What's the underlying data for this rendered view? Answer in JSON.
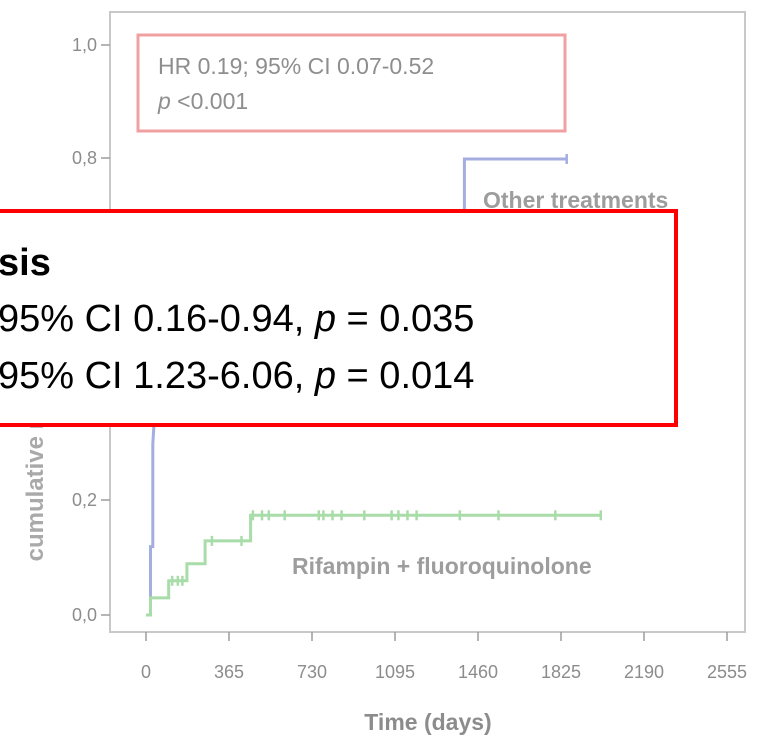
{
  "chart_data": {
    "type": "line",
    "step": true,
    "xlabel": "Time (days)",
    "ylabel": "cumulative risk of failure",
    "xlim": [
      0,
      2555
    ],
    "ylim": [
      0,
      1.0
    ],
    "xticks": [
      "0",
      "365",
      "730",
      "1095",
      "1460",
      "1825",
      "2190",
      "2555"
    ],
    "yticks": [
      "0,0",
      "0,2",
      "0,8",
      "1,0"
    ],
    "grid": false,
    "colors": {
      "other": "#a4aee0",
      "rifampin": "#a8dca8",
      "hr_box": "#f0a0a0",
      "overlay_border": "#ff0000"
    },
    "series": [
      {
        "name": "Other treatments",
        "points": [
          [
            0,
            0
          ],
          [
            20,
            0
          ],
          [
            20,
            0.12
          ],
          [
            30,
            0.12
          ],
          [
            30,
            0.3
          ],
          [
            45,
            0.4
          ],
          [
            1400,
            0.4
          ],
          [
            1400,
            0.8
          ],
          [
            1850,
            0.8
          ]
        ],
        "censored": [
          [
            1850,
            0.8
          ]
        ]
      },
      {
        "name": "Rifampin + fluoroquinolone",
        "points": [
          [
            0,
            0
          ],
          [
            20,
            0
          ],
          [
            20,
            0.03
          ],
          [
            100,
            0.03
          ],
          [
            100,
            0.06
          ],
          [
            180,
            0.06
          ],
          [
            180,
            0.09
          ],
          [
            260,
            0.09
          ],
          [
            260,
            0.13
          ],
          [
            460,
            0.13
          ],
          [
            460,
            0.175
          ],
          [
            2000,
            0.175
          ]
        ],
        "censored": [
          [
            115,
            0.06
          ],
          [
            140,
            0.06
          ],
          [
            160,
            0.06
          ],
          [
            290,
            0.13
          ],
          [
            420,
            0.13
          ],
          [
            470,
            0.175
          ],
          [
            510,
            0.175
          ],
          [
            540,
            0.175
          ],
          [
            610,
            0.175
          ],
          [
            760,
            0.175
          ],
          [
            780,
            0.175
          ],
          [
            820,
            0.175
          ],
          [
            860,
            0.175
          ],
          [
            960,
            0.175
          ],
          [
            1080,
            0.175
          ],
          [
            1110,
            0.175
          ],
          [
            1150,
            0.175
          ],
          [
            1190,
            0.175
          ],
          [
            1380,
            0.175
          ],
          [
            1550,
            0.175
          ],
          [
            1800,
            0.175
          ],
          [
            2000,
            0.175
          ]
        ]
      }
    ],
    "hr_box": {
      "line1": "HR 0.19; 95% CI 0.07-0.52",
      "line2_italic": "p",
      "line2_rest": " <0.001"
    }
  },
  "overlay": {
    "title": "sis",
    "line1_prefix": "95% CI 0.16-0.94, ",
    "line1_italic": "p",
    "line1_suffix": " = 0.035",
    "line2_prefix": "95% CI 1.23-6.06, ",
    "line2_italic": "p",
    "line2_suffix": " = 0.014"
  }
}
